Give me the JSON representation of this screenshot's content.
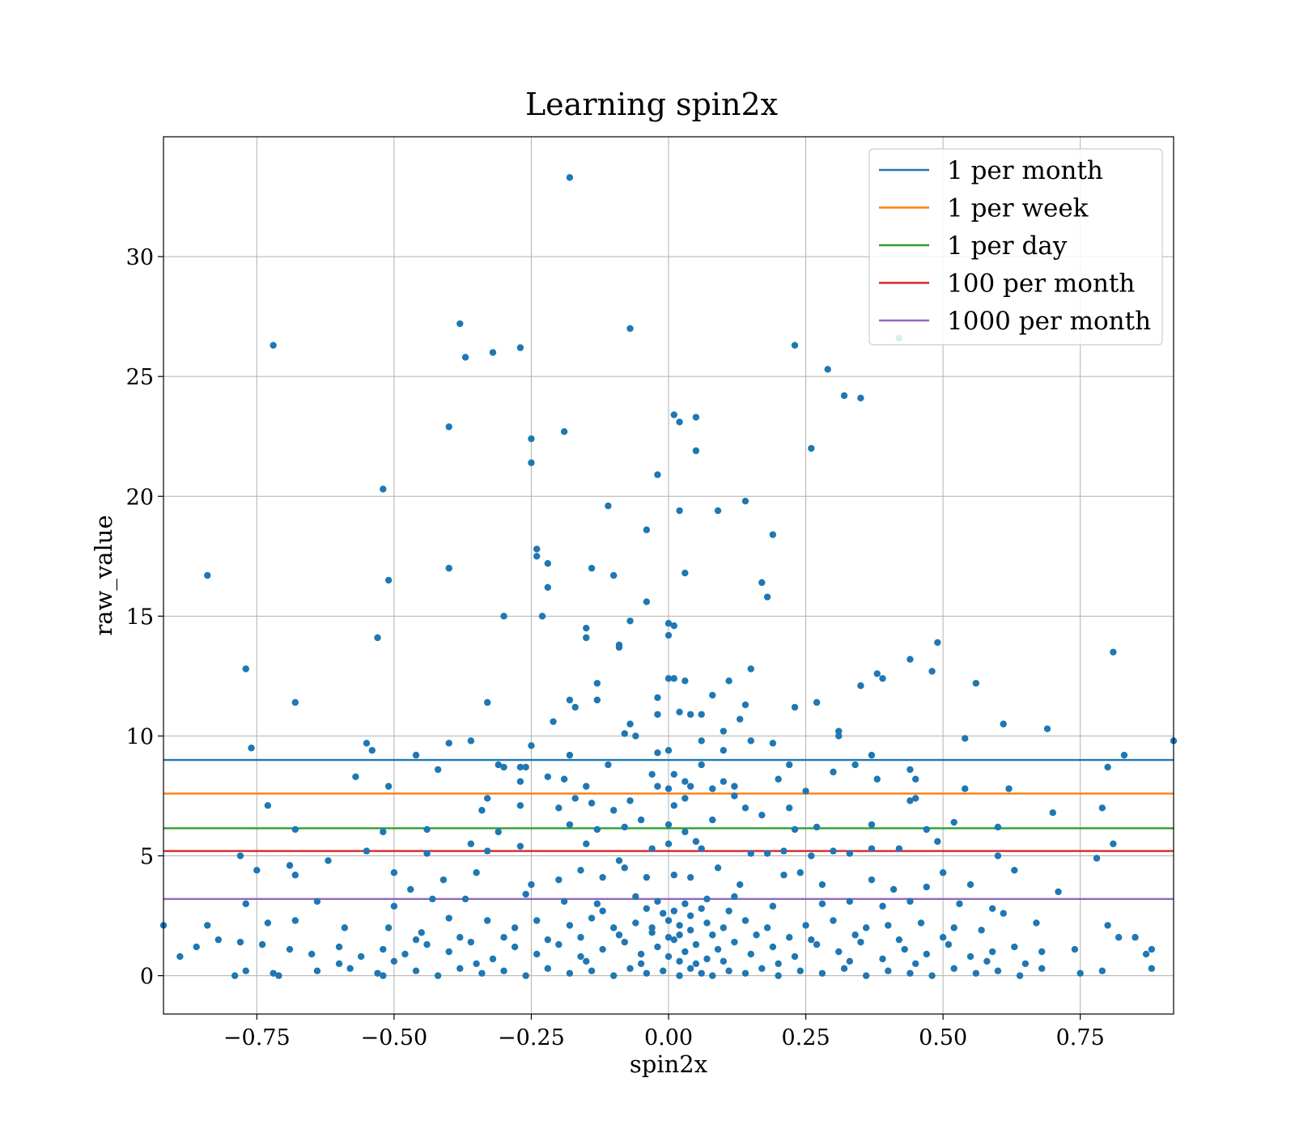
{
  "chart_data": {
    "type": "scatter",
    "title": "Learning spin2x",
    "xlabel": "spin2x",
    "ylabel": "raw_value",
    "xlim": [
      -0.92,
      0.92
    ],
    "ylim": [
      -1.6,
      35.0
    ],
    "x_ticks": [
      -0.75,
      -0.5,
      -0.25,
      0.0,
      0.25,
      0.5,
      0.75
    ],
    "x_tick_labels": [
      "−0.75",
      "−0.50",
      "−0.25",
      "0.00",
      "0.25",
      "0.50",
      "0.75"
    ],
    "y_ticks": [
      0,
      5,
      10,
      15,
      20,
      25,
      30
    ],
    "y_tick_labels": [
      "0",
      "5",
      "10",
      "15",
      "20",
      "25",
      "30"
    ],
    "grid": true,
    "legend_position": "top-right",
    "point_color": "#1f77b4",
    "points": [
      [
        -0.18,
        33.3
      ],
      [
        -0.38,
        27.2
      ],
      [
        -0.07,
        27.0
      ],
      [
        -0.72,
        26.3
      ],
      [
        -0.27,
        26.2
      ],
      [
        -0.32,
        26.0
      ],
      [
        -0.37,
        25.8
      ],
      [
        0.23,
        26.3
      ],
      [
        0.42,
        26.6
      ],
      [
        0.29,
        25.3
      ],
      [
        0.32,
        24.2
      ],
      [
        0.35,
        24.1
      ],
      [
        0.01,
        23.4
      ],
      [
        0.02,
        23.1
      ],
      [
        0.05,
        23.3
      ],
      [
        -0.4,
        22.9
      ],
      [
        -0.25,
        22.4
      ],
      [
        -0.19,
        22.7
      ],
      [
        -0.25,
        21.4
      ],
      [
        0.05,
        21.9
      ],
      [
        0.26,
        22.0
      ],
      [
        -0.52,
        20.3
      ],
      [
        -0.02,
        20.9
      ],
      [
        -0.11,
        19.6
      ],
      [
        0.02,
        19.4
      ],
      [
        0.09,
        19.4
      ],
      [
        0.14,
        19.8
      ],
      [
        -0.04,
        18.6
      ],
      [
        0.19,
        18.4
      ],
      [
        -0.24,
        17.8
      ],
      [
        -0.24,
        17.5
      ],
      [
        -0.22,
        17.2
      ],
      [
        -0.84,
        16.7
      ],
      [
        -0.4,
        17.0
      ],
      [
        -0.51,
        16.5
      ],
      [
        -0.14,
        17.0
      ],
      [
        -0.1,
        16.7
      ],
      [
        0.03,
        16.8
      ],
      [
        0.17,
        16.4
      ],
      [
        -0.22,
        16.2
      ],
      [
        0.18,
        15.8
      ],
      [
        -0.04,
        15.6
      ],
      [
        -0.53,
        14.1
      ],
      [
        -0.3,
        15.0
      ],
      [
        -0.23,
        15.0
      ],
      [
        -0.15,
        14.5
      ],
      [
        -0.15,
        14.1
      ],
      [
        -0.07,
        14.8
      ],
      [
        0.0,
        14.7
      ],
      [
        0.01,
        14.6
      ],
      [
        -0.09,
        13.8
      ],
      [
        -0.09,
        13.7
      ],
      [
        0.0,
        14.2
      ],
      [
        -0.77,
        12.8
      ],
      [
        0.81,
        13.5
      ],
      [
        0.44,
        13.2
      ],
      [
        0.49,
        13.9
      ],
      [
        -0.13,
        12.2
      ],
      [
        0.0,
        12.4
      ],
      [
        0.01,
        12.4
      ],
      [
        0.03,
        12.3
      ],
      [
        0.11,
        12.3
      ],
      [
        0.15,
        12.8
      ],
      [
        0.35,
        12.1
      ],
      [
        0.38,
        12.6
      ],
      [
        0.39,
        12.4
      ],
      [
        0.48,
        12.7
      ],
      [
        0.56,
        12.2
      ],
      [
        -0.68,
        11.4
      ],
      [
        -0.33,
        11.4
      ],
      [
        -0.18,
        11.5
      ],
      [
        -0.17,
        11.2
      ],
      [
        -0.13,
        11.5
      ],
      [
        -0.02,
        11.6
      ],
      [
        0.02,
        11.0
      ],
      [
        0.04,
        10.9
      ],
      [
        0.06,
        10.9
      ],
      [
        0.08,
        11.7
      ],
      [
        0.13,
        10.7
      ],
      [
        0.14,
        11.3
      ],
      [
        0.23,
        11.2
      ],
      [
        0.27,
        11.4
      ],
      [
        -0.08,
        10.1
      ],
      [
        -0.07,
        10.5
      ],
      [
        -0.06,
        10.0
      ],
      [
        -0.02,
        10.9
      ],
      [
        -0.21,
        10.6
      ],
      [
        0.1,
        10.2
      ],
      [
        0.31,
        10.2
      ],
      [
        0.31,
        10.0
      ],
      [
        0.61,
        10.5
      ],
      [
        0.69,
        10.3
      ],
      [
        0.92,
        9.8
      ],
      [
        -0.76,
        9.5
      ],
      [
        -0.55,
        9.7
      ],
      [
        -0.54,
        9.4
      ],
      [
        -0.46,
        9.2
      ],
      [
        -0.4,
        9.7
      ],
      [
        -0.36,
        9.8
      ],
      [
        -0.25,
        9.6
      ],
      [
        -0.18,
        9.2
      ],
      [
        -0.02,
        9.3
      ],
      [
        0.0,
        9.4
      ],
      [
        0.06,
        9.8
      ],
      [
        0.1,
        9.4
      ],
      [
        0.15,
        9.8
      ],
      [
        0.19,
        9.7
      ],
      [
        0.37,
        9.2
      ],
      [
        0.54,
        9.9
      ],
      [
        0.83,
        9.2
      ],
      [
        0.8,
        8.7
      ],
      [
        -0.57,
        8.3
      ],
      [
        -0.42,
        8.6
      ],
      [
        -0.31,
        8.8
      ],
      [
        -0.3,
        8.7
      ],
      [
        -0.27,
        8.7
      ],
      [
        -0.26,
        8.7
      ],
      [
        -0.27,
        8.1
      ],
      [
        -0.22,
        8.3
      ],
      [
        -0.19,
        8.2
      ],
      [
        -0.15,
        7.9
      ],
      [
        -0.11,
        8.8
      ],
      [
        -0.03,
        8.4
      ],
      [
        -0.02,
        7.9
      ],
      [
        0.0,
        7.8
      ],
      [
        0.01,
        8.4
      ],
      [
        0.03,
        8.1
      ],
      [
        0.04,
        7.9
      ],
      [
        0.06,
        8.8
      ],
      [
        0.08,
        7.8
      ],
      [
        0.1,
        8.1
      ],
      [
        0.12,
        7.9
      ],
      [
        0.2,
        8.2
      ],
      [
        0.22,
        8.8
      ],
      [
        0.3,
        8.5
      ],
      [
        0.34,
        8.8
      ],
      [
        0.38,
        8.2
      ],
      [
        0.45,
        8.2
      ],
      [
        0.44,
        8.6
      ],
      [
        -0.73,
        7.1
      ],
      [
        -0.51,
        7.9
      ],
      [
        -0.34,
        6.9
      ],
      [
        -0.33,
        7.4
      ],
      [
        -0.27,
        7.1
      ],
      [
        -0.2,
        7.0
      ],
      [
        -0.17,
        7.4
      ],
      [
        -0.14,
        7.2
      ],
      [
        -0.1,
        6.9
      ],
      [
        -0.07,
        7.3
      ],
      [
        0.01,
        7.1
      ],
      [
        0.03,
        7.4
      ],
      [
        0.12,
        7.5
      ],
      [
        0.14,
        7.0
      ],
      [
        0.22,
        7.0
      ],
      [
        0.25,
        7.7
      ],
      [
        0.44,
        7.3
      ],
      [
        0.45,
        7.4
      ],
      [
        0.54,
        7.8
      ],
      [
        0.62,
        7.8
      ],
      [
        0.7,
        6.8
      ],
      [
        0.79,
        7.0
      ],
      [
        -0.68,
        6.1
      ],
      [
        -0.52,
        6.0
      ],
      [
        -0.44,
        6.1
      ],
      [
        -0.31,
        6.0
      ],
      [
        -0.18,
        6.3
      ],
      [
        -0.13,
        6.1
      ],
      [
        -0.08,
        6.2
      ],
      [
        -0.05,
        6.5
      ],
      [
        0.0,
        6.3
      ],
      [
        0.03,
        6.0
      ],
      [
        0.08,
        6.5
      ],
      [
        0.17,
        6.7
      ],
      [
        0.23,
        6.1
      ],
      [
        0.27,
        6.2
      ],
      [
        0.37,
        6.3
      ],
      [
        0.47,
        6.1
      ],
      [
        0.52,
        6.4
      ],
      [
        0.6,
        6.2
      ],
      [
        -0.78,
        5.0
      ],
      [
        -0.55,
        5.2
      ],
      [
        -0.44,
        5.1
      ],
      [
        -0.36,
        5.5
      ],
      [
        -0.33,
        5.2
      ],
      [
        -0.27,
        5.4
      ],
      [
        -0.15,
        5.5
      ],
      [
        -0.09,
        4.8
      ],
      [
        -0.03,
        5.3
      ],
      [
        0.0,
        5.5
      ],
      [
        0.05,
        5.6
      ],
      [
        0.06,
        5.3
      ],
      [
        0.15,
        5.1
      ],
      [
        0.18,
        5.1
      ],
      [
        0.21,
        5.2
      ],
      [
        0.26,
        5.0
      ],
      [
        0.3,
        5.2
      ],
      [
        0.33,
        5.1
      ],
      [
        0.37,
        5.3
      ],
      [
        0.42,
        5.3
      ],
      [
        0.49,
        5.6
      ],
      [
        0.6,
        5.0
      ],
      [
        0.81,
        5.5
      ],
      [
        0.78,
        4.9
      ],
      [
        -0.75,
        4.4
      ],
      [
        -0.69,
        4.6
      ],
      [
        -0.68,
        4.2
      ],
      [
        -0.62,
        4.8
      ],
      [
        -0.5,
        4.3
      ],
      [
        -0.47,
        3.6
      ],
      [
        -0.41,
        4.0
      ],
      [
        -0.35,
        4.3
      ],
      [
        -0.25,
        3.8
      ],
      [
        -0.2,
        4.0
      ],
      [
        -0.16,
        4.4
      ],
      [
        -0.12,
        4.1
      ],
      [
        -0.08,
        4.5
      ],
      [
        -0.04,
        4.1
      ],
      [
        0.01,
        4.2
      ],
      [
        0.04,
        4.1
      ],
      [
        0.09,
        4.5
      ],
      [
        0.13,
        3.8
      ],
      [
        0.21,
        4.2
      ],
      [
        0.24,
        4.3
      ],
      [
        0.28,
        3.8
      ],
      [
        0.37,
        4.0
      ],
      [
        0.41,
        3.6
      ],
      [
        0.47,
        3.7
      ],
      [
        0.5,
        4.3
      ],
      [
        0.55,
        3.8
      ],
      [
        0.63,
        4.4
      ],
      [
        0.71,
        3.5
      ],
      [
        -0.77,
        3.0
      ],
      [
        -0.64,
        3.1
      ],
      [
        -0.5,
        2.9
      ],
      [
        -0.43,
        3.2
      ],
      [
        -0.37,
        3.2
      ],
      [
        -0.26,
        3.4
      ],
      [
        -0.19,
        3.1
      ],
      [
        -0.13,
        3.0
      ],
      [
        -0.06,
        3.3
      ],
      [
        -0.02,
        3.1
      ],
      [
        0.03,
        3.0
      ],
      [
        0.07,
        3.2
      ],
      [
        0.12,
        3.3
      ],
      [
        0.19,
        2.9
      ],
      [
        0.28,
        3.0
      ],
      [
        0.33,
        3.1
      ],
      [
        0.39,
        2.9
      ],
      [
        0.44,
        3.1
      ],
      [
        0.53,
        3.0
      ],
      [
        0.59,
        2.8
      ],
      [
        0.61,
        2.6
      ],
      [
        -0.92,
        2.1
      ],
      [
        -0.84,
        2.1
      ],
      [
        -0.73,
        2.2
      ],
      [
        -0.68,
        2.3
      ],
      [
        -0.59,
        2.0
      ],
      [
        -0.51,
        2.0
      ],
      [
        -0.45,
        1.8
      ],
      [
        -0.4,
        2.4
      ],
      [
        -0.33,
        2.3
      ],
      [
        -0.28,
        2.0
      ],
      [
        -0.24,
        2.3
      ],
      [
        -0.18,
        2.1
      ],
      [
        -0.14,
        2.4
      ],
      [
        -0.1,
        2.0
      ],
      [
        -0.06,
        2.2
      ],
      [
        -0.03,
        2.0
      ],
      [
        0.0,
        2.3
      ],
      [
        0.02,
        2.1
      ],
      [
        0.04,
        2.5
      ],
      [
        0.07,
        2.2
      ],
      [
        0.1,
        2.0
      ],
      [
        0.14,
        2.3
      ],
      [
        0.18,
        2.0
      ],
      [
        0.25,
        2.1
      ],
      [
        0.3,
        2.3
      ],
      [
        0.36,
        2.0
      ],
      [
        0.4,
        2.1
      ],
      [
        0.46,
        2.2
      ],
      [
        0.52,
        2.0
      ],
      [
        0.57,
        1.9
      ],
      [
        0.67,
        2.2
      ],
      [
        0.8,
        2.1
      ],
      [
        -0.89,
        0.8
      ],
      [
        -0.86,
        1.2
      ],
      [
        -0.82,
        1.5
      ],
      [
        -0.78,
        1.4
      ],
      [
        -0.74,
        1.3
      ],
      [
        -0.69,
        1.1
      ],
      [
        -0.65,
        0.9
      ],
      [
        -0.6,
        1.2
      ],
      [
        -0.56,
        0.8
      ],
      [
        -0.52,
        1.1
      ],
      [
        -0.48,
        0.9
      ],
      [
        -0.44,
        1.3
      ],
      [
        -0.4,
        1.0
      ],
      [
        -0.36,
        1.4
      ],
      [
        -0.32,
        0.7
      ],
      [
        -0.28,
        1.2
      ],
      [
        -0.24,
        0.9
      ],
      [
        -0.2,
        1.3
      ],
      [
        -0.16,
        0.8
      ],
      [
        -0.12,
        1.1
      ],
      [
        -0.08,
        1.4
      ],
      [
        -0.05,
        0.9
      ],
      [
        -0.02,
        1.2
      ],
      [
        0.0,
        0.8
      ],
      [
        0.01,
        1.5
      ],
      [
        0.03,
        1.0
      ],
      [
        0.05,
        1.3
      ],
      [
        0.07,
        0.7
      ],
      [
        0.09,
        1.1
      ],
      [
        0.12,
        1.4
      ],
      [
        0.15,
        0.9
      ],
      [
        0.19,
        1.2
      ],
      [
        0.23,
        0.8
      ],
      [
        0.27,
        1.3
      ],
      [
        0.31,
        1.0
      ],
      [
        0.35,
        1.4
      ],
      [
        0.39,
        0.7
      ],
      [
        0.43,
        1.1
      ],
      [
        0.47,
        0.9
      ],
      [
        0.51,
        1.3
      ],
      [
        0.55,
        0.8
      ],
      [
        0.59,
        1.0
      ],
      [
        0.63,
        1.2
      ],
      [
        0.68,
        1.0
      ],
      [
        0.74,
        1.1
      ],
      [
        0.82,
        1.6
      ],
      [
        0.85,
        1.6
      ],
      [
        0.87,
        0.9
      ],
      [
        0.88,
        1.1
      ],
      [
        -0.79,
        0.0
      ],
      [
        -0.77,
        0.2
      ],
      [
        -0.72,
        0.1
      ],
      [
        -0.71,
        0.0
      ],
      [
        -0.64,
        0.2
      ],
      [
        -0.58,
        0.3
      ],
      [
        -0.53,
        0.1
      ],
      [
        -0.52,
        0.0
      ],
      [
        -0.46,
        0.2
      ],
      [
        -0.42,
        0.0
      ],
      [
        -0.38,
        0.3
      ],
      [
        -0.34,
        0.1
      ],
      [
        -0.3,
        0.2
      ],
      [
        -0.26,
        0.0
      ],
      [
        -0.22,
        0.3
      ],
      [
        -0.18,
        0.1
      ],
      [
        -0.14,
        0.2
      ],
      [
        -0.1,
        0.0
      ],
      [
        -0.07,
        0.3
      ],
      [
        -0.04,
        0.1
      ],
      [
        -0.01,
        0.2
      ],
      [
        0.02,
        0.0
      ],
      [
        0.04,
        0.3
      ],
      [
        0.06,
        0.1
      ],
      [
        0.08,
        0.0
      ],
      [
        0.11,
        0.2
      ],
      [
        0.14,
        0.1
      ],
      [
        0.17,
        0.3
      ],
      [
        0.2,
        0.0
      ],
      [
        0.24,
        0.2
      ],
      [
        0.28,
        0.1
      ],
      [
        0.32,
        0.3
      ],
      [
        0.36,
        0.0
      ],
      [
        0.4,
        0.2
      ],
      [
        0.44,
        0.1
      ],
      [
        0.48,
        0.0
      ],
      [
        0.52,
        0.3
      ],
      [
        0.56,
        0.1
      ],
      [
        0.6,
        0.2
      ],
      [
        0.64,
        0.0
      ],
      [
        0.68,
        0.3
      ],
      [
        0.75,
        0.1
      ],
      [
        0.79,
        0.2
      ],
      [
        0.88,
        0.3
      ],
      [
        -0.6,
        0.5
      ],
      [
        -0.5,
        0.6
      ],
      [
        -0.35,
        0.5
      ],
      [
        -0.15,
        0.6
      ],
      [
        -0.05,
        0.5
      ],
      [
        0.02,
        0.6
      ],
      [
        0.05,
        0.5
      ],
      [
        0.1,
        0.6
      ],
      [
        0.2,
        0.5
      ],
      [
        0.33,
        0.6
      ],
      [
        0.45,
        0.5
      ],
      [
        0.58,
        0.6
      ],
      [
        0.65,
        0.5
      ],
      [
        -0.03,
        1.8
      ],
      [
        0.01,
        2.7
      ],
      [
        0.02,
        1.7
      ],
      [
        0.04,
        1.9
      ],
      [
        0.06,
        2.8
      ],
      [
        -0.01,
        2.6
      ],
      [
        0.0,
        1.6
      ],
      [
        -0.04,
        2.8
      ],
      [
        0.08,
        1.7
      ],
      [
        0.11,
        2.7
      ],
      [
        -0.09,
        1.7
      ],
      [
        -0.12,
        2.7
      ],
      [
        0.16,
        1.7
      ],
      [
        -0.16,
        1.6
      ],
      [
        0.22,
        1.6
      ],
      [
        -0.22,
        1.5
      ],
      [
        0.26,
        1.5
      ],
      [
        0.34,
        1.7
      ],
      [
        -0.3,
        1.6
      ],
      [
        0.42,
        1.5
      ],
      [
        -0.38,
        1.6
      ],
      [
        0.5,
        1.6
      ],
      [
        -0.46,
        1.5
      ]
    ],
    "series": [
      {
        "name": "1 per month",
        "y": 9.0,
        "color": "#1f77b4"
      },
      {
        "name": "1 per week",
        "y": 7.6,
        "color": "#ff7f0e"
      },
      {
        "name": "1 per day",
        "y": 6.15,
        "color": "#2ca02c"
      },
      {
        "name": "100 per month",
        "y": 5.2,
        "color": "#d62728"
      },
      {
        "name": "1000 per month",
        "y": 3.2,
        "color": "#9467bd"
      }
    ]
  }
}
